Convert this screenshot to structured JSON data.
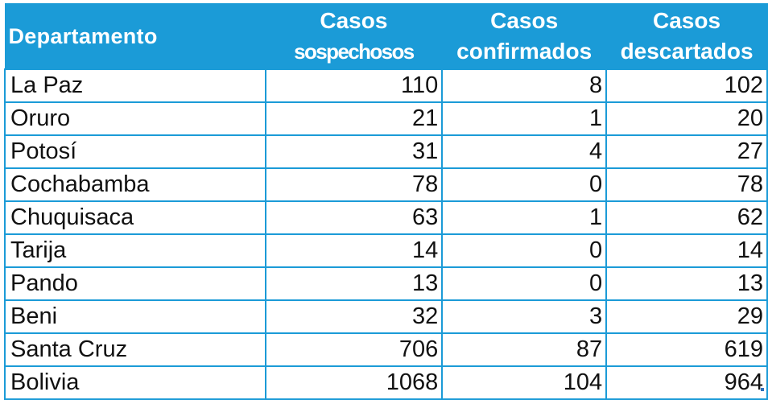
{
  "table": {
    "headers": {
      "departamento": "Departamento",
      "sospechosos": [
        "Casos",
        "sospechosos"
      ],
      "confirmados": [
        "Casos",
        "confirmados"
      ],
      "descartados": [
        "Casos",
        "descartados"
      ]
    },
    "rows": [
      {
        "name": "La Paz",
        "sospechosos": "110",
        "confirmados": "8",
        "descartados": "102"
      },
      {
        "name": "Oruro",
        "sospechosos": "21",
        "confirmados": "1",
        "descartados": "20"
      },
      {
        "name": "Potosí",
        "sospechosos": "31",
        "confirmados": "4",
        "descartados": "27"
      },
      {
        "name": "Cochabamba",
        "sospechosos": "78",
        "confirmados": "0",
        "descartados": "78"
      },
      {
        "name": "Chuquisaca",
        "sospechosos": "63",
        "confirmados": "1",
        "descartados": "62"
      },
      {
        "name": "Tarija",
        "sospechosos": "14",
        "confirmados": "0",
        "descartados": "14"
      },
      {
        "name": "Pando",
        "sospechosos": "13",
        "confirmados": "0",
        "descartados": "13"
      },
      {
        "name": "Beni",
        "sospechosos": "32",
        "confirmados": "3",
        "descartados": "29"
      },
      {
        "name": "Santa Cruz",
        "sospechosos": "706",
        "confirmados": "87",
        "descartados": "619"
      },
      {
        "name": "Bolivia",
        "sospechosos": "1068",
        "confirmados": "104",
        "descartados": "964"
      }
    ]
  },
  "colors": {
    "header_bg": "#1b9bd7",
    "header_text": "#ffffff",
    "grid": "#1b9bd7",
    "body_text": "#111111"
  }
}
